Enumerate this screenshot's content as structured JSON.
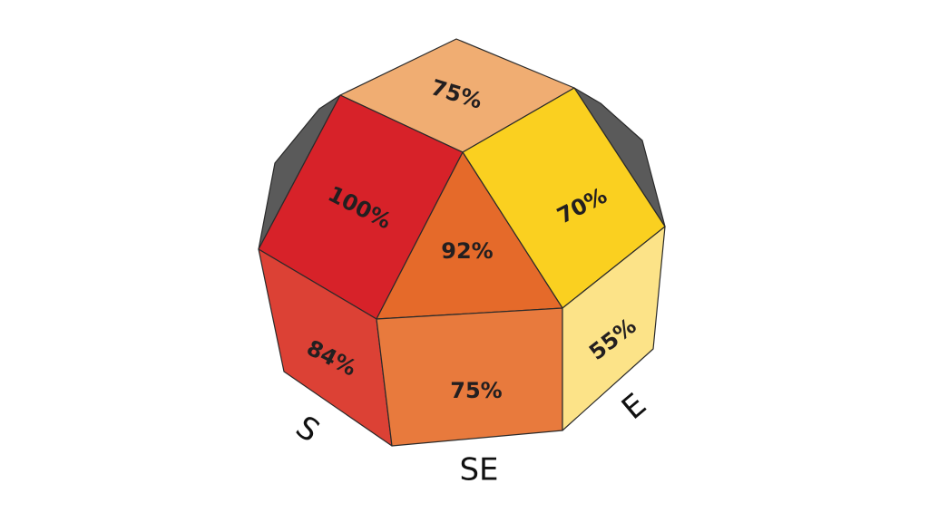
{
  "faces": [
    {
      "label": "75%"
    },
    {
      "label": "100%"
    },
    {
      "label": "70%"
    },
    {
      "label": "92%"
    },
    {
      "label": "84%"
    },
    {
      "label": "75%"
    },
    {
      "label": "55%"
    }
  ],
  "directions": [
    "S",
    "SE",
    "E"
  ]
}
